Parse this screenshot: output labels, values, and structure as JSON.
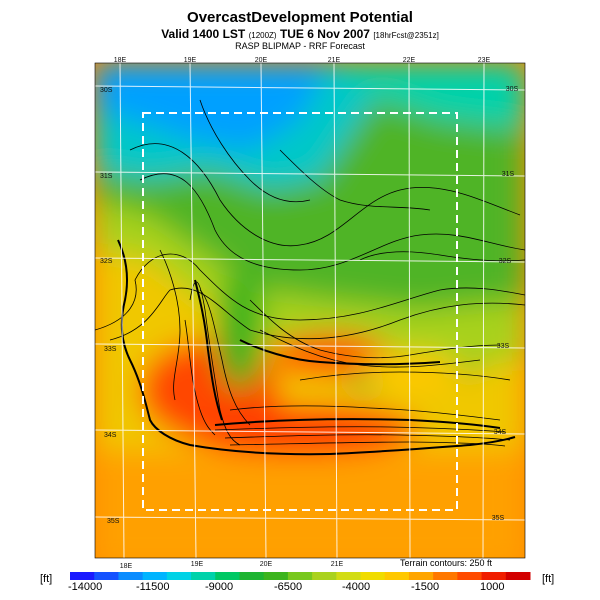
{
  "title": "OvercastDevelopment Potential",
  "subtitle": {
    "main": "Valid 1400 LST",
    "utc": "(1200Z)",
    "date": "TUE 6 Nov 2007",
    "fcst": "[18hrFcst@2351z]"
  },
  "source": "RASP BLIPMAP - RRF Forecast",
  "terrain_note": "Terrain contours: 250 ft",
  "unit": "[ft]",
  "lon_labels_top": [
    "18E",
    "19E",
    "20E",
    "21E",
    "22E",
    "23E"
  ],
  "lon_labels_bottom": [
    "18E",
    "19E",
    "20E",
    "21E"
  ],
  "lat_labels_left": [
    "30S",
    "31S",
    "32S",
    "33S",
    "34S",
    "35S"
  ],
  "lat_labels_right": [
    "30S",
    "31S",
    "32S",
    "33S",
    "34S",
    "35S"
  ],
  "colorbar": {
    "ticks": [
      "-14000",
      "-11500",
      "-9000",
      "-6500",
      "-4000",
      "-1500",
      "1000"
    ],
    "colors": [
      "#1a1aff",
      "#1452ff",
      "#0a8cff",
      "#00b4ff",
      "#00d2e6",
      "#00d2aa",
      "#00c864",
      "#1eb432",
      "#3cb41e",
      "#78c81e",
      "#aad21e",
      "#d2dc14",
      "#f0dc00",
      "#ffc800",
      "#ffa500",
      "#ff7800",
      "#ff4b00",
      "#f01e00",
      "#d20000"
    ]
  },
  "colors": {
    "domain_box": "#ffffff",
    "grid": "#ffffff",
    "contour": "#000000"
  }
}
